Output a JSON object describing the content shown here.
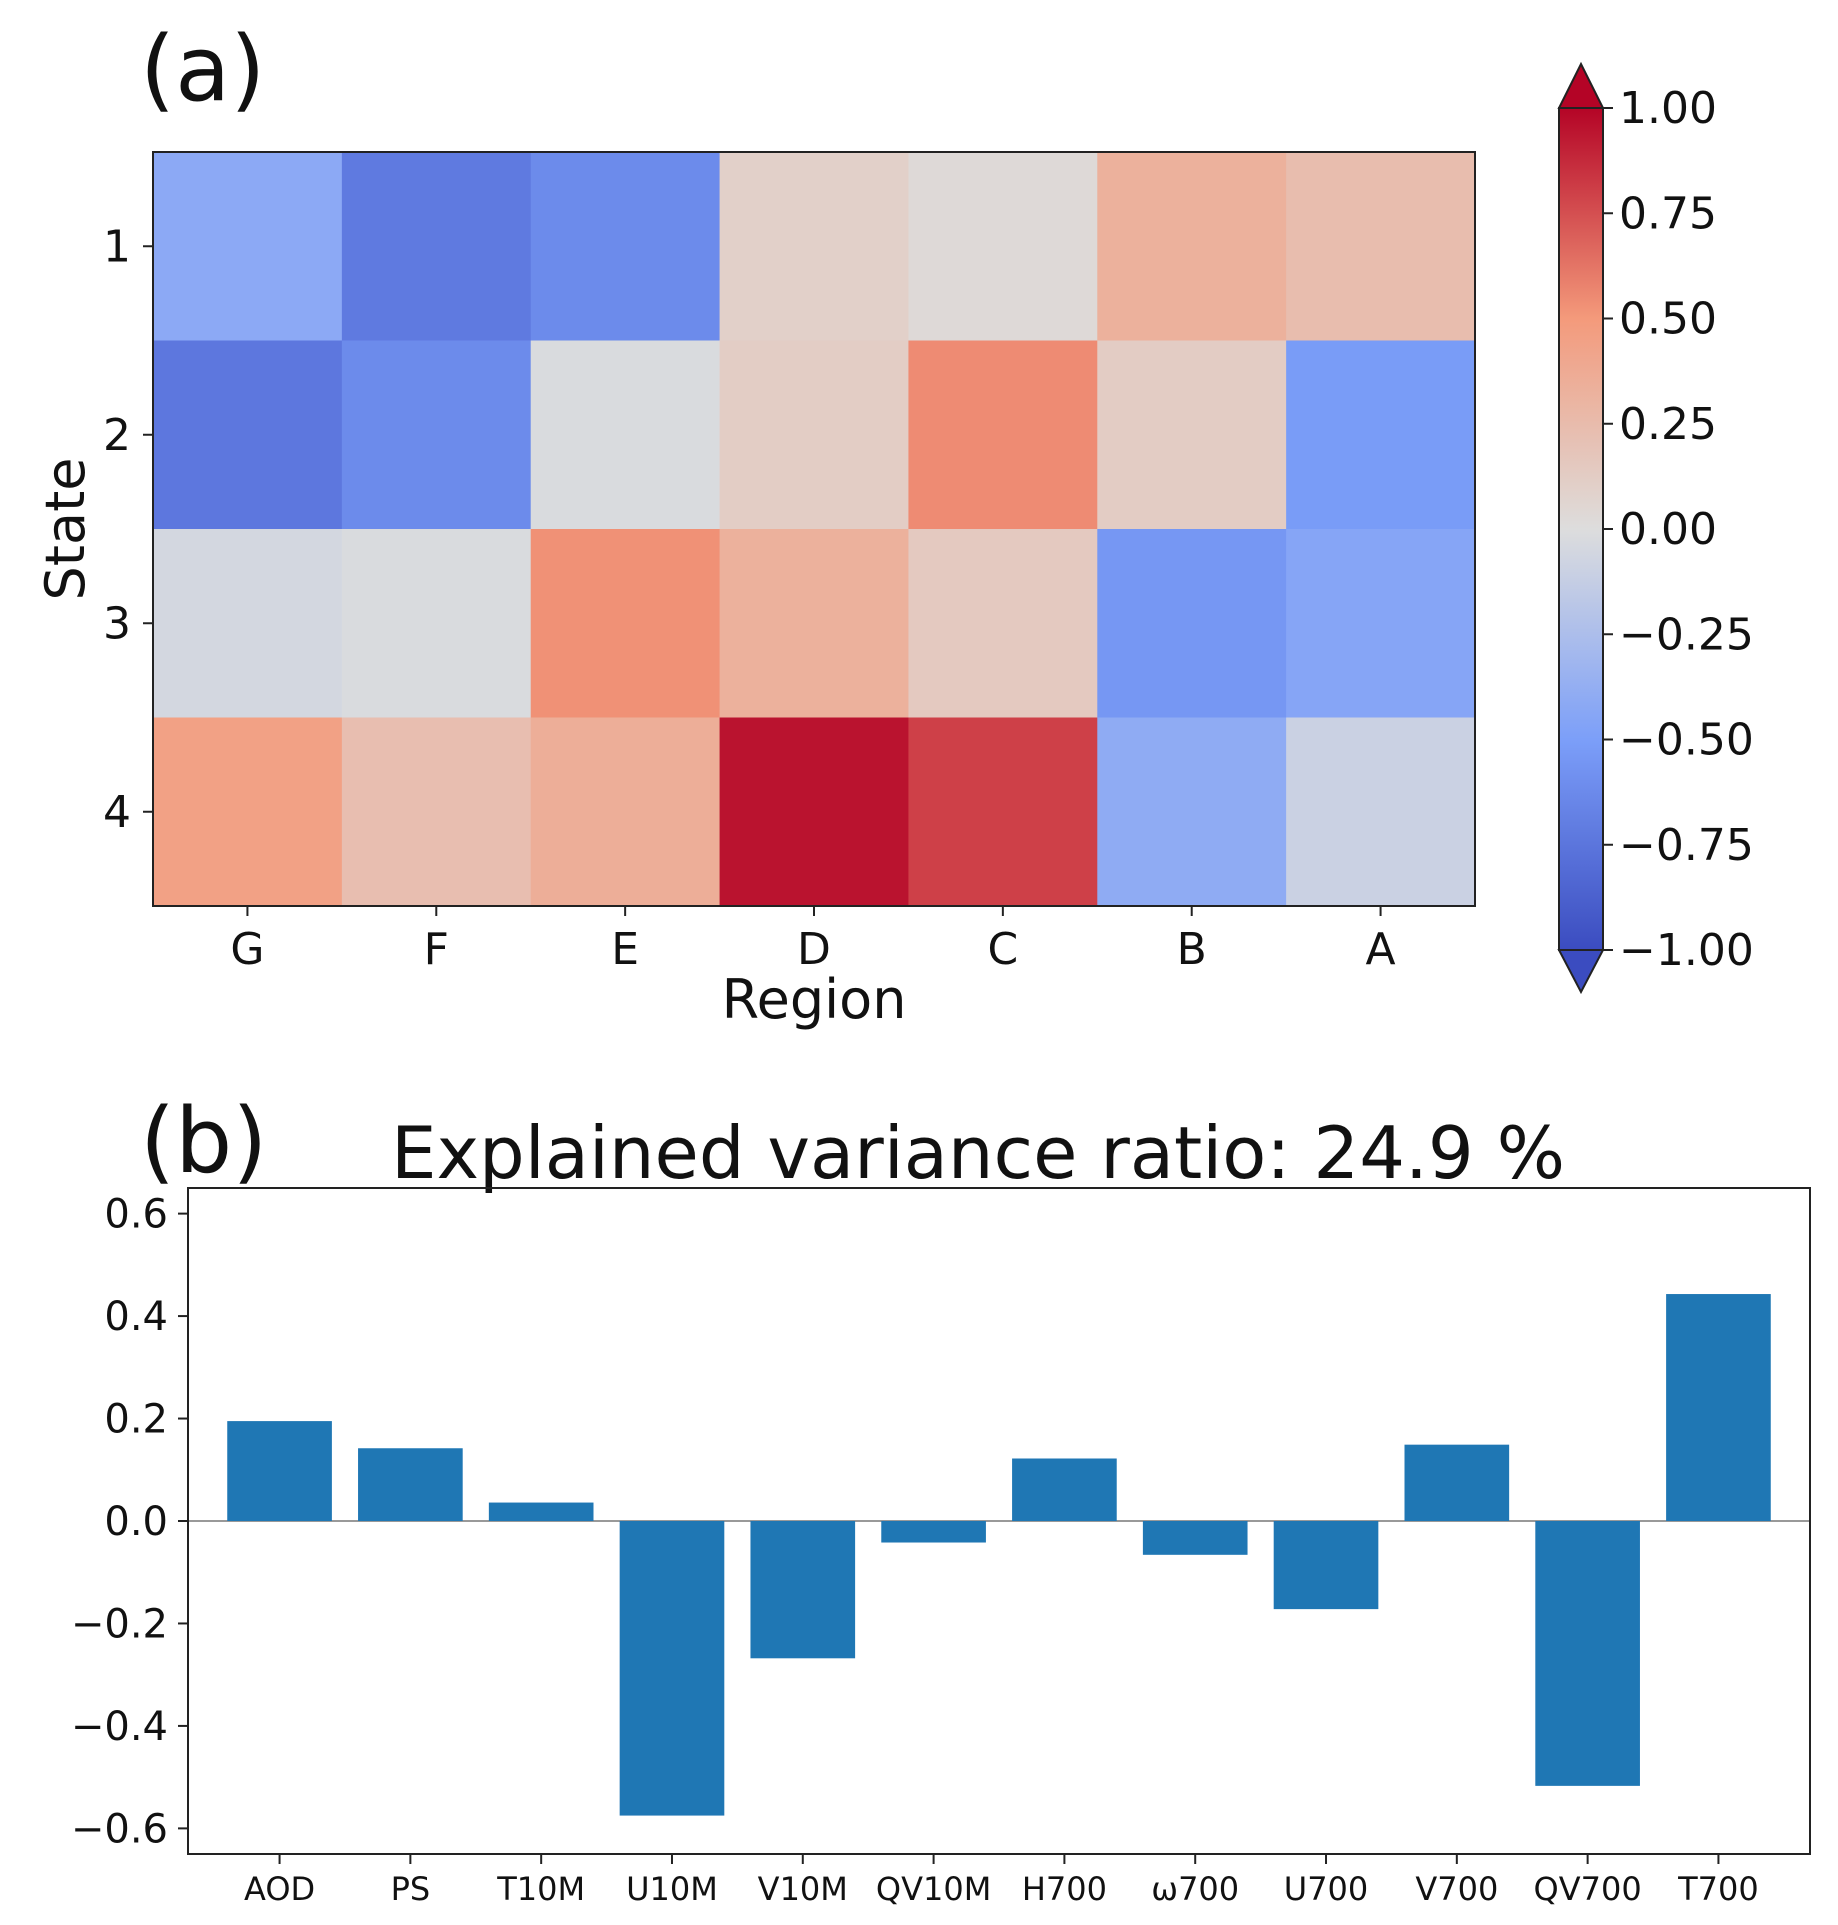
{
  "chart_data": [
    {
      "type": "heatmap",
      "panel_label": "(a)",
      "title": "",
      "xlabel": "Region",
      "ylabel": "State",
      "x_categories": [
        "G",
        "F",
        "E",
        "D",
        "C",
        "B",
        "A"
      ],
      "y_categories": [
        "1",
        "2",
        "3",
        "4"
      ],
      "values": [
        [
          -0.42,
          -0.72,
          -0.62,
          0.1,
          0.03,
          0.33,
          0.24
        ],
        [
          -0.74,
          -0.62,
          -0.02,
          0.12,
          0.55,
          0.13,
          -0.52
        ],
        [
          -0.05,
          -0.02,
          0.53,
          0.33,
          0.15,
          -0.55,
          -0.45
        ],
        [
          0.45,
          0.23,
          0.35,
          0.95,
          0.8,
          -0.4,
          -0.1
        ]
      ],
      "colorbar": {
        "colormap": "coolwarm",
        "range": [
          -1.0,
          1.0
        ],
        "extend": "both",
        "ticks": [
          1.0,
          0.75,
          0.5,
          0.25,
          0.0,
          -0.25,
          -0.5,
          -0.75,
          -1.0
        ],
        "tick_labels": [
          "1.00",
          "0.75",
          "0.50",
          "0.25",
          "0.00",
          "−0.25",
          "−0.50",
          "−0.75",
          "−1.00"
        ]
      }
    },
    {
      "type": "bar",
      "panel_label": "(b)",
      "title": "Explained variance ratio: 24.9 %",
      "xlabel": "",
      "ylabel": "",
      "categories": [
        "AOD",
        "PS",
        "T10M",
        "U10M",
        "V10M",
        "QV10M",
        "H700",
        "ω700",
        "U700",
        "V700",
        "QV700",
        "T700"
      ],
      "values": [
        0.195,
        0.142,
        0.036,
        -0.575,
        -0.268,
        -0.042,
        0.122,
        -0.066,
        -0.172,
        0.149,
        -0.517,
        0.443
      ],
      "ylim": [
        -0.65,
        0.65
      ],
      "yticks": [
        0.6,
        0.4,
        0.2,
        0.0,
        -0.2,
        -0.4,
        -0.6
      ],
      "ytick_labels": [
        "0.6",
        "0.4",
        "0.2",
        "0.0",
        "−0.2",
        "−0.4",
        "−0.6"
      ],
      "bar_color": "#1f77b4"
    }
  ]
}
